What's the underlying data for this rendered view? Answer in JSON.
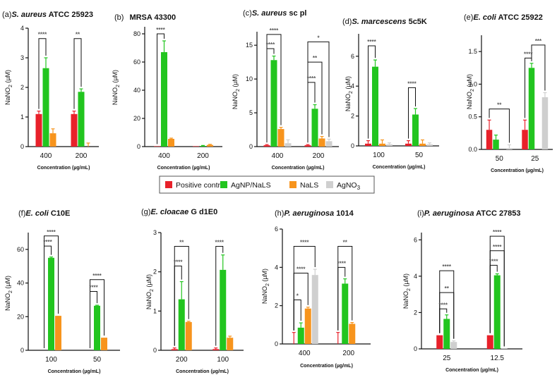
{
  "figure": {
    "legend": [
      {
        "name": "Positive control",
        "color": "#e8212a"
      },
      {
        "name": "AgNP/NaLS",
        "color": "#22c51f"
      },
      {
        "name": "NaLS",
        "color": "#f7941d"
      },
      {
        "name": "AgNO3",
        "color": "#cfcfcf"
      }
    ],
    "legend_sub_label": "AgNO",
    "legend_sub_digit": "3"
  },
  "chart_data": [
    {
      "type": "bar",
      "label": "(a)",
      "species": "S. aureus",
      "strain": "ATCC 25923",
      "ylabel": "NaNO2 (µM)",
      "xlabel": "Concentration (µg/mL)",
      "ylim": [
        0,
        4
      ],
      "yticks": [
        0,
        1,
        2,
        3,
        4
      ],
      "categories": [
        "400",
        "200"
      ],
      "series": [
        {
          "name": "Positive control",
          "values": [
            1.1,
            1.1
          ],
          "errors": [
            0.1,
            0.1
          ]
        },
        {
          "name": "AgNP/NaLS",
          "values": [
            2.65,
            1.85
          ],
          "errors": [
            0.35,
            0.1
          ]
        },
        {
          "name": "NaLS",
          "values": [
            0.45,
            0.0
          ],
          "errors": [
            0.15,
            0.12
          ]
        }
      ],
      "annotations": [
        {
          "text": "****",
          "category": 0,
          "from": 0,
          "to": 1,
          "level": 3.65
        },
        {
          "text": "**",
          "category": 1,
          "from": 0,
          "to": 1,
          "level": 3.65
        }
      ]
    },
    {
      "type": "bar",
      "label": "(b)",
      "species": "",
      "strain": "MRSA 43300",
      "ylabel": "NaNO2 (µM)",
      "xlabel": "Concentration (µg/mL)",
      "ylim": [
        0,
        85
      ],
      "yticks": [
        0,
        20,
        40,
        60,
        80
      ],
      "categories": [
        "400",
        "200"
      ],
      "series": [
        {
          "name": "Positive control",
          "values": [
            0.3,
            0.3
          ],
          "errors": [
            0,
            0
          ]
        },
        {
          "name": "AgNP/NaLS",
          "values": [
            67,
            0.5
          ],
          "errors": [
            8,
            0.3
          ]
        },
        {
          "name": "NaLS",
          "values": [
            5.5,
            1.2
          ],
          "errors": [
            0.5,
            0.4
          ]
        }
      ],
      "annotations": [
        {
          "text": "****",
          "category": 0,
          "from": 0,
          "to": 1,
          "level": 80
        }
      ]
    },
    {
      "type": "bar",
      "label": "(c)",
      "species": "S. aureus",
      "strain": "sc pl",
      "ylabel": "NaNO2 (µM)",
      "xlabel": "Concentration (µg/mL)",
      "ylim": [
        0,
        17
      ],
      "yticks": [
        0,
        5,
        10,
        15
      ],
      "categories": [
        "400",
        "200"
      ],
      "series": [
        {
          "name": "Positive control",
          "values": [
            0.2,
            0.2
          ],
          "errors": [
            0.1,
            0.1
          ]
        },
        {
          "name": "AgNP/NaLS",
          "values": [
            12.8,
            5.6
          ],
          "errors": [
            0.6,
            0.6
          ]
        },
        {
          "name": "NaLS",
          "values": [
            2.6,
            1.2
          ],
          "errors": [
            0.25,
            0.3
          ]
        },
        {
          "name": "AgNO3",
          "values": [
            0.5,
            0.8
          ],
          "errors": [
            0.5,
            0.3
          ]
        }
      ],
      "annotations": [
        {
          "text": "****",
          "category": 0,
          "from": 0,
          "to": 2,
          "level": 16.6
        },
        {
          "text": "****",
          "category": 0,
          "from": 0,
          "to": 1,
          "level": 14.5
        },
        {
          "text": "*",
          "category": 1,
          "from": 0,
          "to": 3,
          "level": 15.5
        },
        {
          "text": "**",
          "category": 1,
          "from": 0,
          "to": 2,
          "level": 12.5
        },
        {
          "text": "****",
          "category": 1,
          "from": 0,
          "to": 1,
          "level": 9.5
        }
      ]
    },
    {
      "type": "bar",
      "label": "(d)",
      "species": "S. marcescens",
      "strain": "5c5K",
      "ylabel": "NaNO2 (µM)",
      "xlabel": "Concentration (µg/mL)",
      "ylim": [
        0,
        7.5
      ],
      "yticks": [
        0,
        2,
        4,
        6
      ],
      "categories": [
        "100",
        "50"
      ],
      "series": [
        {
          "name": "Positive control",
          "values": [
            0.15,
            0.15
          ],
          "errors": [
            0.2,
            0.2
          ]
        },
        {
          "name": "AgNP/NaLS",
          "values": [
            5.3,
            2.1
          ],
          "errors": [
            0.45,
            0.4
          ]
        },
        {
          "name": "NaLS",
          "values": [
            0.15,
            0.15
          ],
          "errors": [
            0.25,
            0.25
          ]
        },
        {
          "name": "AgNO3",
          "values": [
            0.1,
            0.1
          ],
          "errors": [
            0.1,
            0.1
          ]
        }
      ],
      "annotations": [
        {
          "text": "****",
          "category": 0,
          "from": 0,
          "to": 1,
          "level": 6.7
        },
        {
          "text": "****",
          "category": 1,
          "from": 0,
          "to": 1,
          "level": 3.9
        }
      ]
    },
    {
      "type": "bar",
      "label": "(e)",
      "species": "E. coli",
      "strain": "ATCC 25922",
      "ylabel": "NaNO2 (µM)",
      "xlabel": "Concentration (µg/mL)",
      "ylim": [
        0,
        1.75
      ],
      "yticks": [
        0.0,
        0.5,
        1.0,
        1.5
      ],
      "categories": [
        "50",
        "25"
      ],
      "series": [
        {
          "name": "Positive control",
          "values": [
            0.3,
            0.3
          ],
          "errors": [
            0.15,
            0.15
          ]
        },
        {
          "name": "AgNP/NaLS",
          "values": [
            0.15,
            1.25
          ],
          "errors": [
            0.07,
            0.07
          ]
        },
        {
          "name": "NaLS",
          "values": [
            0.0,
            0.0
          ],
          "errors": [
            0,
            0
          ]
        },
        {
          "name": "AgNO3",
          "values": [
            0.02,
            0.8
          ],
          "errors": [
            0.05,
            0.07
          ]
        }
      ],
      "annotations": [
        {
          "text": "**",
          "category": 0,
          "from": 0,
          "to": 3,
          "level": 0.62
        },
        {
          "text": "***",
          "category": 1,
          "from": 1,
          "to": 3,
          "level": 1.6
        },
        {
          "text": "****",
          "category": 1,
          "from": 0,
          "to": 1,
          "level": 1.4
        }
      ]
    },
    {
      "type": "bar",
      "label": "(f)",
      "species": "E. coli",
      "strain": "C10E",
      "ylabel": "NaNO2 (µM)",
      "xlabel": "Concentration (µg/mL)",
      "ylim": [
        0,
        70
      ],
      "yticks": [
        0,
        20,
        40,
        60
      ],
      "categories": [
        "100",
        "50"
      ],
      "series": [
        {
          "name": "Positive control",
          "values": [
            0,
            0
          ],
          "errors": [
            0,
            0
          ]
        },
        {
          "name": "AgNP/NaLS",
          "values": [
            55,
            26.5
          ],
          "errors": [
            0.5,
            0.3
          ]
        },
        {
          "name": "NaLS",
          "values": [
            20.5,
            7.5
          ],
          "errors": [
            0,
            0
          ]
        }
      ],
      "annotations": [
        {
          "text": "****",
          "category": 0,
          "from": 0,
          "to": 2,
          "level": 68
        },
        {
          "text": "****",
          "category": 0,
          "from": 0,
          "to": 1,
          "level": 62
        },
        {
          "text": "****",
          "category": 1,
          "from": 0,
          "to": 2,
          "level": 42
        },
        {
          "text": "****",
          "category": 1,
          "from": 0,
          "to": 1,
          "level": 35
        }
      ]
    },
    {
      "type": "bar",
      "label": "(g)",
      "species": "E. cloacae",
      "strain": "G d1E0",
      "ylabel": "NaNO2 (µM)",
      "xlabel": "Concentration (µg/mL)",
      "ylim": [
        0,
        3
      ],
      "yticks": [
        0,
        1,
        2,
        3
      ],
      "categories": [
        "200",
        "100"
      ],
      "series": [
        {
          "name": "Positive control",
          "values": [
            0.03,
            0.03
          ],
          "errors": [
            0.03,
            0.03
          ]
        },
        {
          "name": "AgNP/NaLS",
          "values": [
            1.3,
            2.05
          ],
          "errors": [
            0.45,
            0.38
          ]
        },
        {
          "name": "NaLS",
          "values": [
            0.72,
            0.32
          ],
          "errors": [
            0.02,
            0.04
          ]
        }
      ],
      "annotations": [
        {
          "text": "**",
          "category": 0,
          "from": 0,
          "to": 2,
          "level": 2.65
        },
        {
          "text": "****",
          "category": 0,
          "from": 0,
          "to": 1,
          "level": 2.15
        },
        {
          "text": "****",
          "category": 1,
          "from": 0,
          "to": 1,
          "level": 2.65
        }
      ]
    },
    {
      "type": "bar",
      "label": "(h)",
      "species": "P. aeruginosa",
      "strain": "1014",
      "ylabel": "NaNO2 (µM)",
      "xlabel": "Concentration (µg/mL)",
      "xlabel_large": true,
      "ylim": [
        0,
        6
      ],
      "yticks": [
        0,
        2,
        4,
        6
      ],
      "categories": [
        "400",
        "200"
      ],
      "series": [
        {
          "name": "Positive control",
          "values": [
            0,
            0
          ],
          "errors": [
            0.6,
            0.6
          ]
        },
        {
          "name": "AgNP/NaLS",
          "values": [
            0.85,
            3.15
          ],
          "errors": [
            0.25,
            0.25
          ]
        },
        {
          "name": "NaLS",
          "values": [
            1.85,
            1.05
          ],
          "errors": [
            0.07,
            0.07
          ]
        },
        {
          "name": "AgNO3",
          "values": [
            3.6,
            0
          ],
          "errors": [
            0.3,
            0
          ]
        }
      ],
      "annotations": [
        {
          "text": "****",
          "category": 0,
          "from": 0,
          "to": 3,
          "level": 5.1
        },
        {
          "text": "****",
          "category": 0,
          "from": 0,
          "to": 2,
          "level": 3.7
        },
        {
          "text": "*",
          "category": 0,
          "from": 0,
          "to": 1,
          "level": 2.3
        },
        {
          "text": "**",
          "category": 1,
          "from": 0,
          "to": 2,
          "level": 5.1
        },
        {
          "text": "****",
          "category": 1,
          "from": 0,
          "to": 1,
          "level": 4.0
        }
      ]
    },
    {
      "type": "bar",
      "label": "(i)",
      "species": "P. aeruginosa",
      "strain": "ATCC 27853",
      "ylabel": "NaNO2 (µM)",
      "xlabel": "Concentration (µg/mL)",
      "ylim": [
        0,
        6.4
      ],
      "yticks": [
        0,
        2,
        4,
        6
      ],
      "categories": [
        "25",
        "12.5"
      ],
      "series": [
        {
          "name": "Positive control",
          "values": [
            0.75,
            0.75
          ],
          "errors": [
            0,
            0
          ]
        },
        {
          "name": "AgNP/NaLS",
          "values": [
            1.65,
            4.05
          ],
          "errors": [
            0.22,
            0.08
          ]
        },
        {
          "name": "AgNO3",
          "values": [
            0.38,
            0.02
          ],
          "errors": [
            0.06,
            0
          ]
        }
      ],
      "annotations": [
        {
          "text": "****",
          "category": 0,
          "from": 0,
          "to": 2,
          "level": 4.3
        },
        {
          "text": "**",
          "category": 0,
          "from": 0,
          "to": 2,
          "level": 3.1
        },
        {
          "text": "****",
          "category": 0,
          "from": 0,
          "to": 1,
          "level": 2.2
        },
        {
          "text": "****",
          "category": 1,
          "from": 0,
          "to": 2,
          "level": 6.2
        },
        {
          "text": "****",
          "category": 1,
          "from": 0,
          "to": 2,
          "level": 5.4
        },
        {
          "text": "****",
          "category": 1,
          "from": 0,
          "to": 1,
          "level": 4.6
        }
      ]
    }
  ]
}
